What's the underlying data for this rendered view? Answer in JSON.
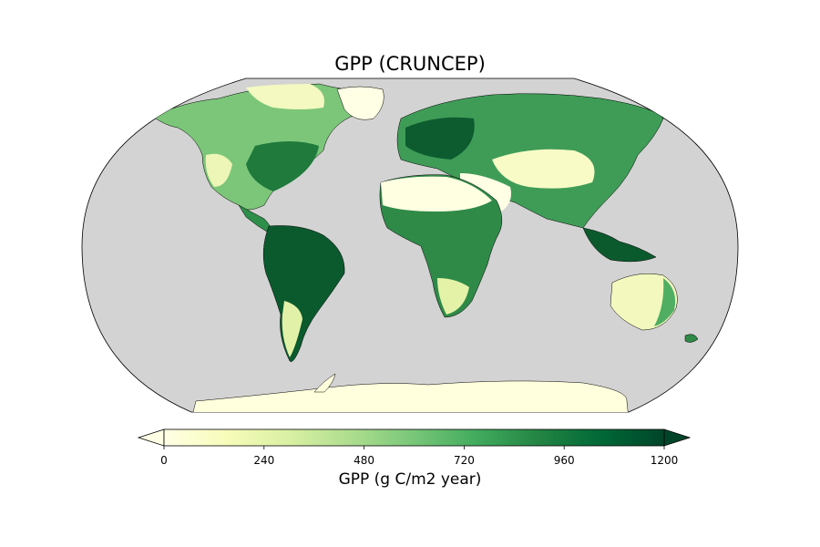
{
  "title": "GPP (CRUNCEP)",
  "colorbar": {
    "label": "GPP (g C/m2 year)",
    "ticks": [
      0,
      240,
      480,
      720,
      960,
      1200
    ],
    "min": 0,
    "max": 1200,
    "extend": "both",
    "colormap": "YlGn",
    "colors": [
      "#ffffe5",
      "#f7fcb9",
      "#d9f0a3",
      "#addd8e",
      "#78c679",
      "#41ab5d",
      "#238443",
      "#006837",
      "#004529"
    ]
  },
  "map": {
    "projection": "Robinson",
    "ocean_color": "#d3d3d3",
    "coastline_color": "#000000"
  }
}
